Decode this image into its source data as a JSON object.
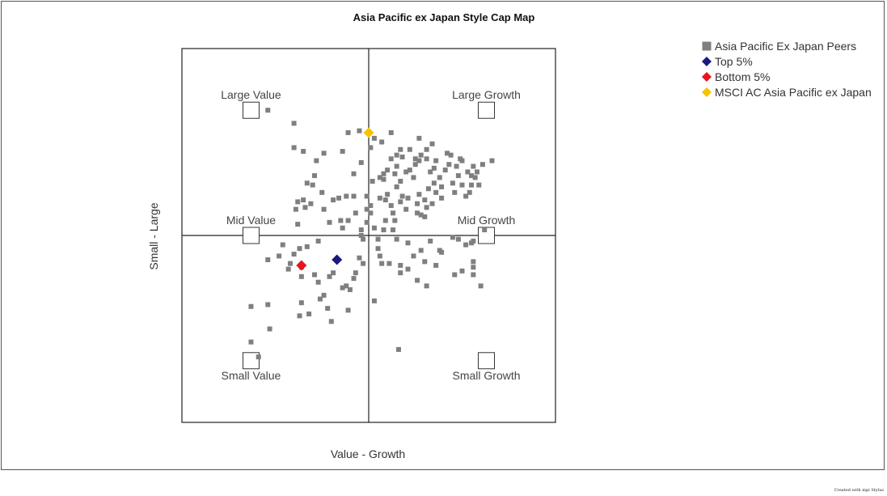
{
  "chart_data": {
    "type": "scatter",
    "title": "Asia Pacific ex Japan Style Cap Map",
    "xlabel": "Value - Growth",
    "ylabel": "Small - Large",
    "xlim": [
      -100,
      100
    ],
    "ylim": [
      -100,
      100
    ],
    "grid": false,
    "legend_position": "top-right",
    "style_boxes": [
      {
        "label": "Large Value",
        "x": -63,
        "y": 67
      },
      {
        "label": "Large Growth",
        "x": 63,
        "y": 67
      },
      {
        "label": "Mid Value",
        "x": -63,
        "y": 0
      },
      {
        "label": "Mid Growth",
        "x": 63,
        "y": 0
      },
      {
        "label": "Small Value",
        "x": -63,
        "y": -67
      },
      {
        "label": "Small Growth",
        "x": 63,
        "y": -67
      }
    ],
    "series": [
      {
        "name": "Asia Pacific Ex Japan Peers",
        "marker": "square",
        "color": "#7f7f7f",
        "points": [
          [
            -54,
            67
          ],
          [
            -40,
            60
          ],
          [
            -11,
            55
          ],
          [
            -5,
            56
          ],
          [
            12,
            55
          ],
          [
            -40,
            47
          ],
          [
            -35,
            45
          ],
          [
            -24,
            44
          ],
          [
            -14,
            45
          ],
          [
            -28,
            40
          ],
          [
            -4,
            39
          ],
          [
            -8,
            33
          ],
          [
            -29,
            32
          ],
          [
            -33,
            28
          ],
          [
            -30,
            27
          ],
          [
            -25,
            23
          ],
          [
            -16,
            20
          ],
          [
            -12,
            21
          ],
          [
            -35,
            19
          ],
          [
            -38,
            18
          ],
          [
            -31,
            17
          ],
          [
            -39,
            14
          ],
          [
            -34,
            15
          ],
          [
            -24,
            14
          ],
          [
            -19,
            19
          ],
          [
            -8,
            21
          ],
          [
            -1,
            21
          ],
          [
            1,
            16
          ],
          [
            -1,
            14
          ],
          [
            -15,
            8
          ],
          [
            -7,
            12
          ],
          [
            -11,
            8
          ],
          [
            -38,
            6
          ],
          [
            -21,
            7
          ],
          [
            -14,
            4
          ],
          [
            -1,
            7
          ],
          [
            -4,
            3
          ],
          [
            -4,
            0
          ],
          [
            -3,
            -2
          ],
          [
            -27,
            -3
          ],
          [
            -33,
            -6
          ],
          [
            -46,
            -5
          ],
          [
            -37,
            -7
          ],
          [
            -40,
            -10
          ],
          [
            -48,
            -11
          ],
          [
            -54,
            -13
          ],
          [
            -42,
            -15
          ],
          [
            -36,
            -17
          ],
          [
            -43,
            -18
          ],
          [
            -36,
            -22
          ],
          [
            -27,
            -25
          ],
          [
            -29,
            -21
          ],
          [
            -19,
            -20
          ],
          [
            -21,
            -22
          ],
          [
            -14,
            -28
          ],
          [
            -12,
            -27
          ],
          [
            -24,
            -32
          ],
          [
            -26,
            -34
          ],
          [
            -10,
            -29
          ],
          [
            -36,
            -36
          ],
          [
            -37,
            -43
          ],
          [
            -54,
            -37
          ],
          [
            -63,
            -38
          ],
          [
            -22,
            -39
          ],
          [
            -32,
            -42
          ],
          [
            -5,
            -12
          ],
          [
            -3,
            -15
          ],
          [
            -7,
            -20
          ],
          [
            -8,
            -23
          ],
          [
            -11,
            -40
          ],
          [
            -63,
            -57
          ],
          [
            -59,
            -65
          ],
          [
            -53,
            -50
          ],
          [
            -20,
            -46
          ],
          [
            3,
            -35
          ],
          [
            16,
            -61
          ],
          [
            5,
            -7
          ],
          [
            6,
            -11
          ],
          [
            7,
            -15
          ],
          [
            11,
            -15
          ],
          [
            17,
            -16
          ],
          [
            17,
            -20
          ],
          [
            21,
            -18
          ],
          [
            5,
            -2
          ],
          [
            15,
            -2
          ],
          [
            21,
            -4
          ],
          [
            24,
            -11
          ],
          [
            28,
            -8
          ],
          [
            36,
            -16
          ],
          [
            39,
            -9
          ],
          [
            33,
            -3
          ],
          [
            45,
            -1
          ],
          [
            52,
            -5
          ],
          [
            56,
            -14
          ],
          [
            46,
            -21
          ],
          [
            56,
            -17
          ],
          [
            56,
            -21
          ],
          [
            50,
            -19
          ],
          [
            60,
            -27
          ],
          [
            31,
            -27
          ],
          [
            26,
            -24
          ],
          [
            30,
            -14
          ],
          [
            38,
            -8
          ],
          [
            48,
            -2
          ],
          [
            55,
            -4
          ],
          [
            62,
            3
          ],
          [
            56,
            -3
          ],
          [
            2,
            29
          ],
          [
            6,
            31
          ],
          [
            8,
            33
          ],
          [
            12,
            41
          ],
          [
            17,
            46
          ],
          [
            22,
            46
          ],
          [
            27,
            52
          ],
          [
            28,
            43
          ],
          [
            34,
            49
          ],
          [
            31,
            46
          ],
          [
            31,
            41
          ],
          [
            25,
            38
          ],
          [
            22,
            35
          ],
          [
            24,
            31
          ],
          [
            33,
            34
          ],
          [
            35,
            36
          ],
          [
            41,
            35
          ],
          [
            36,
            40
          ],
          [
            43,
            38
          ],
          [
            47,
            37
          ],
          [
            53,
            34
          ],
          [
            50,
            40
          ],
          [
            48,
            32
          ],
          [
            45,
            28
          ],
          [
            38,
            31
          ],
          [
            39,
            26
          ],
          [
            46,
            23
          ],
          [
            52,
            21
          ],
          [
            54,
            23
          ],
          [
            50,
            27
          ],
          [
            55,
            27
          ],
          [
            55,
            32
          ],
          [
            56,
            37
          ],
          [
            61,
            38
          ],
          [
            58,
            34
          ],
          [
            59,
            27
          ],
          [
            57,
            31
          ],
          [
            66,
            40
          ],
          [
            44,
            43
          ],
          [
            49,
            41
          ],
          [
            15,
            43
          ],
          [
            18,
            42
          ],
          [
            25,
            41
          ],
          [
            27,
            40
          ],
          [
            15,
            37
          ],
          [
            20,
            34
          ],
          [
            14,
            33
          ],
          [
            10,
            35
          ],
          [
            8,
            30
          ],
          [
            17,
            29
          ],
          [
            15,
            26
          ],
          [
            10,
            22
          ],
          [
            18,
            21
          ],
          [
            21,
            20
          ],
          [
            17,
            18
          ],
          [
            20,
            14
          ],
          [
            26,
            12
          ],
          [
            28,
            11
          ],
          [
            31,
            15
          ],
          [
            34,
            17
          ],
          [
            36,
            23
          ],
          [
            32,
            25
          ],
          [
            39,
            20
          ],
          [
            30,
            10
          ],
          [
            6,
            20
          ],
          [
            9,
            19
          ],
          [
            12,
            16
          ],
          [
            13,
            12
          ],
          [
            14,
            8
          ],
          [
            1,
            12
          ],
          [
            3,
            4
          ],
          [
            9,
            8
          ],
          [
            8,
            3
          ],
          [
            13,
            3
          ],
          [
            26,
            17
          ],
          [
            27,
            22
          ],
          [
            30,
            19
          ],
          [
            35,
            28
          ],
          [
            42,
            44
          ],
          [
            1,
            47
          ],
          [
            3,
            52
          ],
          [
            7,
            50
          ]
        ]
      },
      {
        "name": "Top 5%",
        "marker": "diamond",
        "color": "#1a1a80",
        "points": [
          [
            -17,
            -13
          ]
        ]
      },
      {
        "name": "Bottom 5%",
        "marker": "diamond",
        "color": "#e8141c",
        "points": [
          [
            -36,
            -16
          ]
        ]
      },
      {
        "name": "MSCI AC Asia Pacific ex Japan",
        "marker": "diamond",
        "color": "#f5c400",
        "points": [
          [
            0,
            55
          ]
        ]
      }
    ]
  },
  "credit": "Created with mpi Stylus"
}
